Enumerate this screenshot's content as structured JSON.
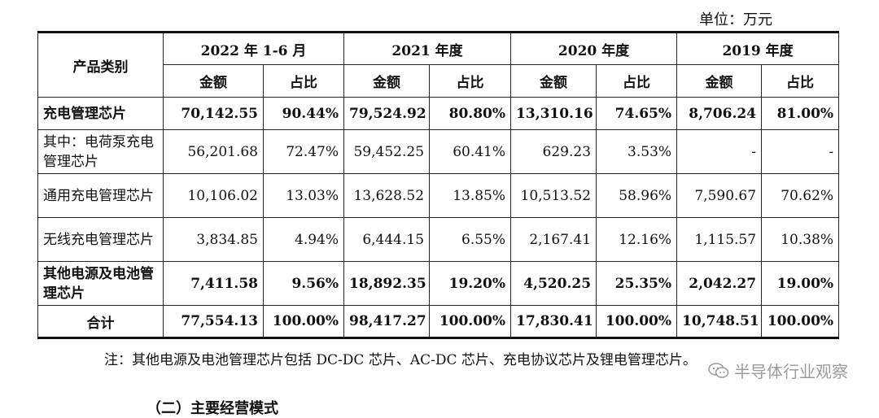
{
  "unit": "单位：万元",
  "header": {
    "category": "产品类别",
    "periods": [
      "2022 年 1-6 月",
      "2021 年度",
      "2020 年度",
      "2019 年度"
    ],
    "amount": "金额",
    "ratio": "占比"
  },
  "rows": [
    {
      "label": "充电管理芯片",
      "values": [
        "70,142.55",
        "90.44%",
        "79,524.92",
        "80.80%",
        "13,310.16",
        "74.65%",
        "8,706.24",
        "81.00%"
      ]
    },
    {
      "label": "其中：电荷泵充电管理芯片",
      "values": [
        "56,201.68",
        "72.47%",
        "59,452.25",
        "60.41%",
        "629.23",
        "3.53%",
        "-",
        "-"
      ]
    },
    {
      "label": "通用充电管理芯片",
      "values": [
        "10,106.02",
        "13.03%",
        "13,628.52",
        "13.85%",
        "10,513.52",
        "58.96%",
        "7,590.67",
        "70.62%"
      ]
    },
    {
      "label": "无线充电管理芯片",
      "values": [
        "3,834.85",
        "4.94%",
        "6,444.15",
        "6.55%",
        "2,167.41",
        "12.16%",
        "1,115.57",
        "10.38%"
      ]
    },
    {
      "label": "其他电源及电池管理芯片",
      "values": [
        "7,411.58",
        "9.56%",
        "18,892.35",
        "19.20%",
        "4,520.25",
        "25.35%",
        "2,042.27",
        "19.00%"
      ]
    },
    {
      "label": "合计",
      "values": [
        "77,554.13",
        "100.00%",
        "98,417.27",
        "100.00%",
        "17,830.41",
        "100.00%",
        "10,748.51",
        "100.00%"
      ]
    }
  ],
  "note": "注：其他电源及电池管理芯片包括 DC-DC 芯片、AC-DC 芯片、充电协议芯片及锂电管理芯片。",
  "watermark": "半导体行业观察",
  "next_heading": "（二）主要经营模式"
}
